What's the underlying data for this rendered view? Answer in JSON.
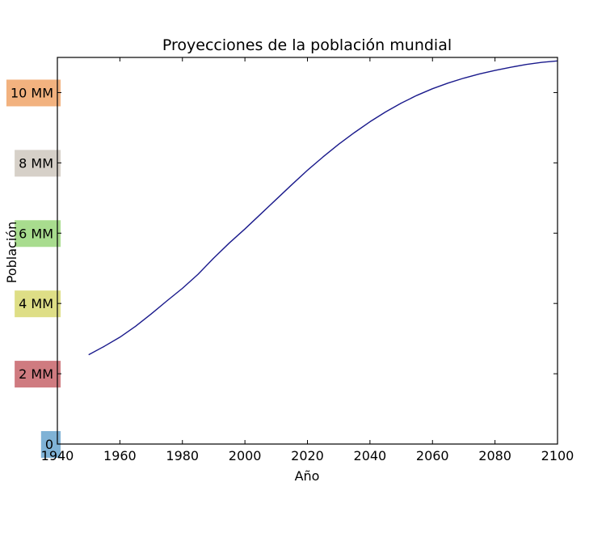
{
  "chart_data": {
    "type": "line",
    "title": "Proyecciones de la población mundial",
    "xlabel": "Año",
    "ylabel": "Población",
    "xlim": [
      1940,
      2100
    ],
    "ylim": [
      0,
      11000000000
    ],
    "x_ticks": [
      1940,
      1960,
      1980,
      2000,
      2020,
      2040,
      2060,
      2080,
      2100
    ],
    "y_ticks": [
      {
        "value": 0,
        "label": "0",
        "color": "#7fb2d6"
      },
      {
        "value": 2000000000,
        "label": "2 MM",
        "color": "#cf7b80"
      },
      {
        "value": 4000000000,
        "label": "4 MM",
        "color": "#dede86"
      },
      {
        "value": 6000000000,
        "label": "6 MM",
        "color": "#a8dc8e"
      },
      {
        "value": 8000000000,
        "label": "8 MM",
        "color": "#d6d0c8"
      },
      {
        "value": 10000000000,
        "label": "10 MM",
        "color": "#f2b27f"
      }
    ],
    "grid": false,
    "series": [
      {
        "color": "#1a1a8c",
        "x": [
          1950,
          1955,
          1960,
          1965,
          1970,
          1975,
          1980,
          1985,
          1990,
          1995,
          2000,
          2005,
          2010,
          2015,
          2020,
          2025,
          2030,
          2035,
          2040,
          2045,
          2050,
          2055,
          2060,
          2065,
          2070,
          2075,
          2080,
          2085,
          2090,
          2095,
          2100
        ],
        "y": [
          2540000000,
          2780000000,
          3040000000,
          3350000000,
          3700000000,
          4070000000,
          4430000000,
          4830000000,
          5290000000,
          5720000000,
          6120000000,
          6540000000,
          6960000000,
          7380000000,
          7790000000,
          8170000000,
          8530000000,
          8860000000,
          9170000000,
          9450000000,
          9700000000,
          9920000000,
          10110000000,
          10270000000,
          10410000000,
          10530000000,
          10630000000,
          10720000000,
          10800000000,
          10860000000,
          10900000000
        ]
      }
    ]
  }
}
